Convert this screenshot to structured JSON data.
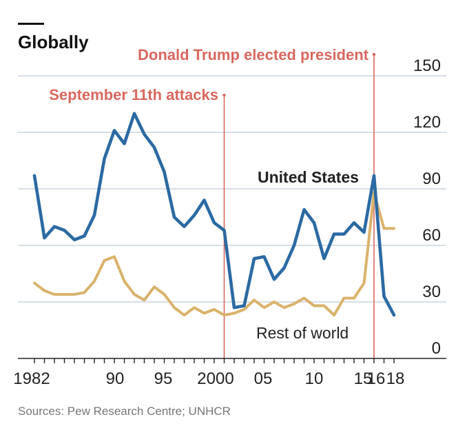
{
  "header": {
    "title": "Globally"
  },
  "source": "Sources: Pew Research Centre; UNHCR",
  "chart_data": {
    "type": "line",
    "title": "Globally",
    "x": [
      1982,
      1983,
      1984,
      1985,
      1986,
      1987,
      1988,
      1989,
      1990,
      1991,
      1992,
      1993,
      1994,
      1995,
      1996,
      1997,
      1998,
      1999,
      2000,
      2001,
      2002,
      2003,
      2004,
      2005,
      2006,
      2007,
      2008,
      2009,
      2010,
      2011,
      2012,
      2013,
      2014,
      2015,
      2016,
      2017,
      2018
    ],
    "xlim": [
      1981,
      2021
    ],
    "ylim": [
      0,
      150
    ],
    "x_tick_labels": [
      "1982",
      "90",
      "95",
      "2000",
      "05",
      "10",
      "15",
      "16",
      "18"
    ],
    "x_tick_values": [
      1982,
      1990,
      1995,
      2000,
      2005,
      2010,
      2015,
      2016,
      2018
    ],
    "y_ticks": [
      0,
      30,
      60,
      90,
      120,
      150
    ],
    "y_tick_labels": [
      "0",
      "30",
      "60",
      "90",
      "120",
      "150"
    ],
    "y_axis_side": "right",
    "grid": true,
    "series": [
      {
        "name": "United States",
        "color": "#2b6aa3",
        "values": [
          97,
          64,
          70,
          68,
          63,
          65,
          76,
          106,
          121,
          114,
          130,
          119,
          112,
          99,
          75,
          70,
          76,
          84,
          72,
          68,
          27,
          28,
          53,
          54,
          42,
          48,
          60,
          79,
          72,
          53,
          66,
          66,
          72,
          67,
          97,
          33,
          23
        ]
      },
      {
        "name": "Rest of world",
        "color": "#d9b26b",
        "values": [
          40,
          36,
          34,
          34,
          34,
          35,
          41,
          52,
          54,
          41,
          34,
          31,
          38,
          34,
          27,
          23,
          27,
          24,
          26,
          23,
          24,
          26,
          31,
          27,
          30,
          27,
          29,
          32,
          28,
          28,
          23,
          32,
          32,
          40,
          88,
          69,
          69
        ]
      }
    ],
    "events": [
      {
        "label": "September 11th attacks",
        "x": 2001
      },
      {
        "label": "Donald Trump elected president",
        "x": 2016
      }
    ]
  }
}
